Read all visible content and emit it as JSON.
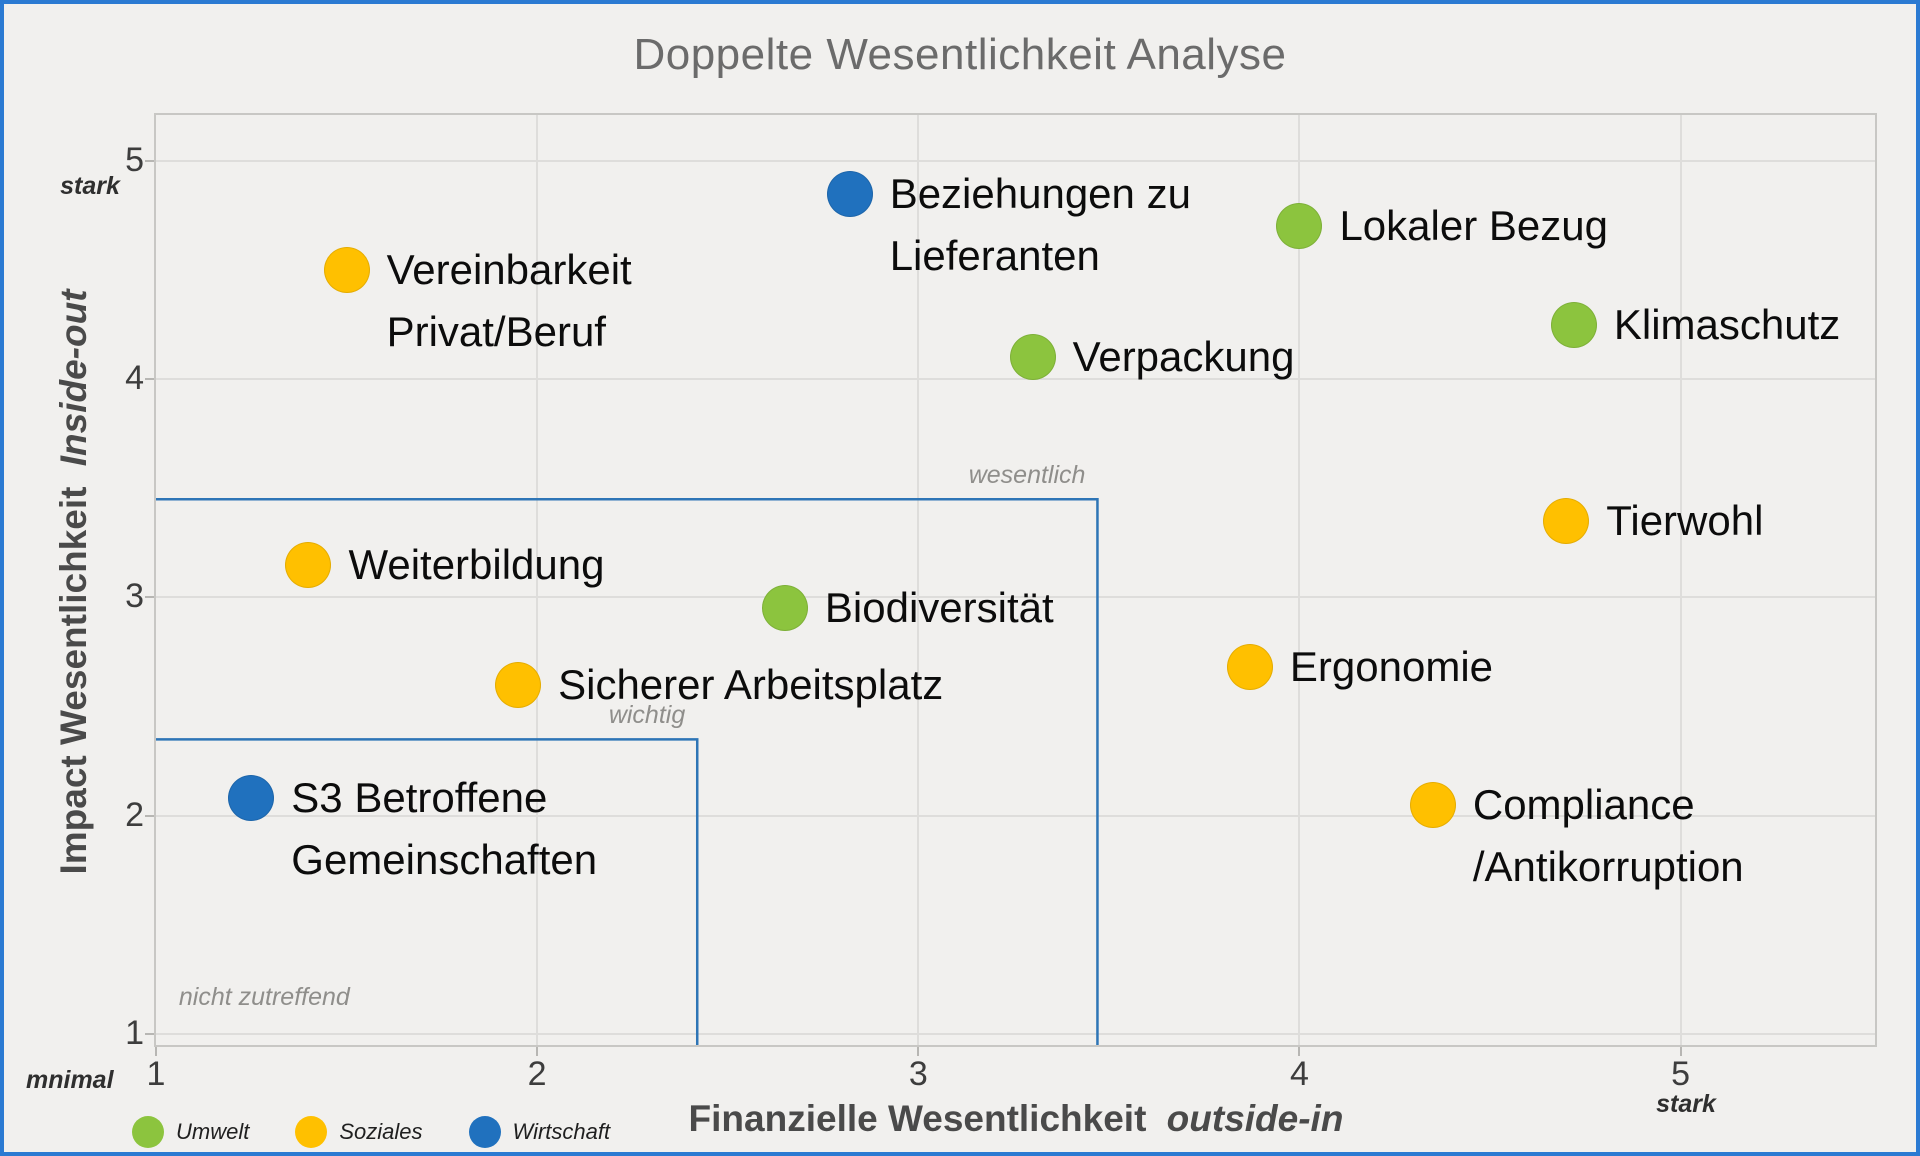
{
  "title": "Doppelte Wesentlichkeit Analyse",
  "axes": {
    "x": {
      "title": "Finanzielle Wesentlichkeit",
      "title_italic": "outside-in",
      "ticks": [
        "1",
        "2",
        "3",
        "4",
        "5"
      ],
      "origin_label": "mnimal",
      "max_label": "stark"
    },
    "y": {
      "title": "Impact Wesentlichkeit",
      "title_italic": "Inside-out",
      "ticks": [
        "1",
        "2",
        "3",
        "4",
        "5"
      ],
      "max_label": "stark"
    }
  },
  "legend": [
    {
      "label": "Umwelt",
      "color": "#8CC43E"
    },
    {
      "label": "Soziales",
      "color": "#FFC000"
    },
    {
      "label": "Wirtschaft",
      "color": "#2071BE"
    }
  ],
  "chart_data": {
    "type": "scatter",
    "title": "Doppelte Wesentlichkeit Analyse",
    "xlabel": "Finanzielle Wesentlichkeit outside-in",
    "ylabel": "Impact Wesentlichkeit Inside-out",
    "xlim": [
      1,
      5.51
    ],
    "ylim": [
      0.95,
      5.21
    ],
    "x_ticks": [
      1,
      2,
      3,
      4,
      5
    ],
    "y_ticks": [
      1,
      2,
      3,
      4,
      5
    ],
    "grid": true,
    "legend_position": "bottom-left",
    "threshold_line_color": "#2E75B6",
    "series": [
      {
        "name": "Umwelt",
        "color": "#8CC43E",
        "points": [
          {
            "label": [
              "Lokaler Bezug"
            ],
            "x": 4.0,
            "y": 4.7
          },
          {
            "label": [
              "Klimaschutz"
            ],
            "x": 4.72,
            "y": 4.25
          },
          {
            "label": [
              "Verpackung"
            ],
            "x": 3.3,
            "y": 4.1
          },
          {
            "label": [
              "Biodiversität"
            ],
            "x": 2.65,
            "y": 2.95
          }
        ]
      },
      {
        "name": "Soziales",
        "color": "#FFC000",
        "points": [
          {
            "label": [
              "Vereinbarkeit",
              "Privat/Beruf"
            ],
            "x": 1.5,
            "y": 4.5
          },
          {
            "label": [
              "Tierwohl"
            ],
            "x": 4.7,
            "y": 3.35
          },
          {
            "label": [
              "Weiterbildung"
            ],
            "x": 1.4,
            "y": 3.15
          },
          {
            "label": [
              "Sicherer Arbeitsplatz"
            ],
            "x": 1.95,
            "y": 2.6
          },
          {
            "label": [
              "Ergonomie"
            ],
            "x": 3.87,
            "y": 2.68
          },
          {
            "label": [
              "Compliance",
              "/Antikorruption"
            ],
            "x": 4.35,
            "y": 2.05
          }
        ]
      },
      {
        "name": "Wirtschaft",
        "color": "#2071BE",
        "points": [
          {
            "label": [
              "Beziehungen zu",
              "Lieferanten"
            ],
            "x": 2.82,
            "y": 4.85
          },
          {
            "label": [
              "S3 Betroffene",
              "Gemeinschaften"
            ],
            "x": 1.25,
            "y": 2.08
          }
        ]
      }
    ],
    "regions": [
      {
        "label": "wesentlich",
        "x": 3.47,
        "y": 3.45
      },
      {
        "label": "wichtig",
        "x": 2.42,
        "y": 2.35
      }
    ],
    "annotations": [
      {
        "label": "nicht zutreffend",
        "x": 1.06,
        "y": 1.17
      }
    ]
  }
}
